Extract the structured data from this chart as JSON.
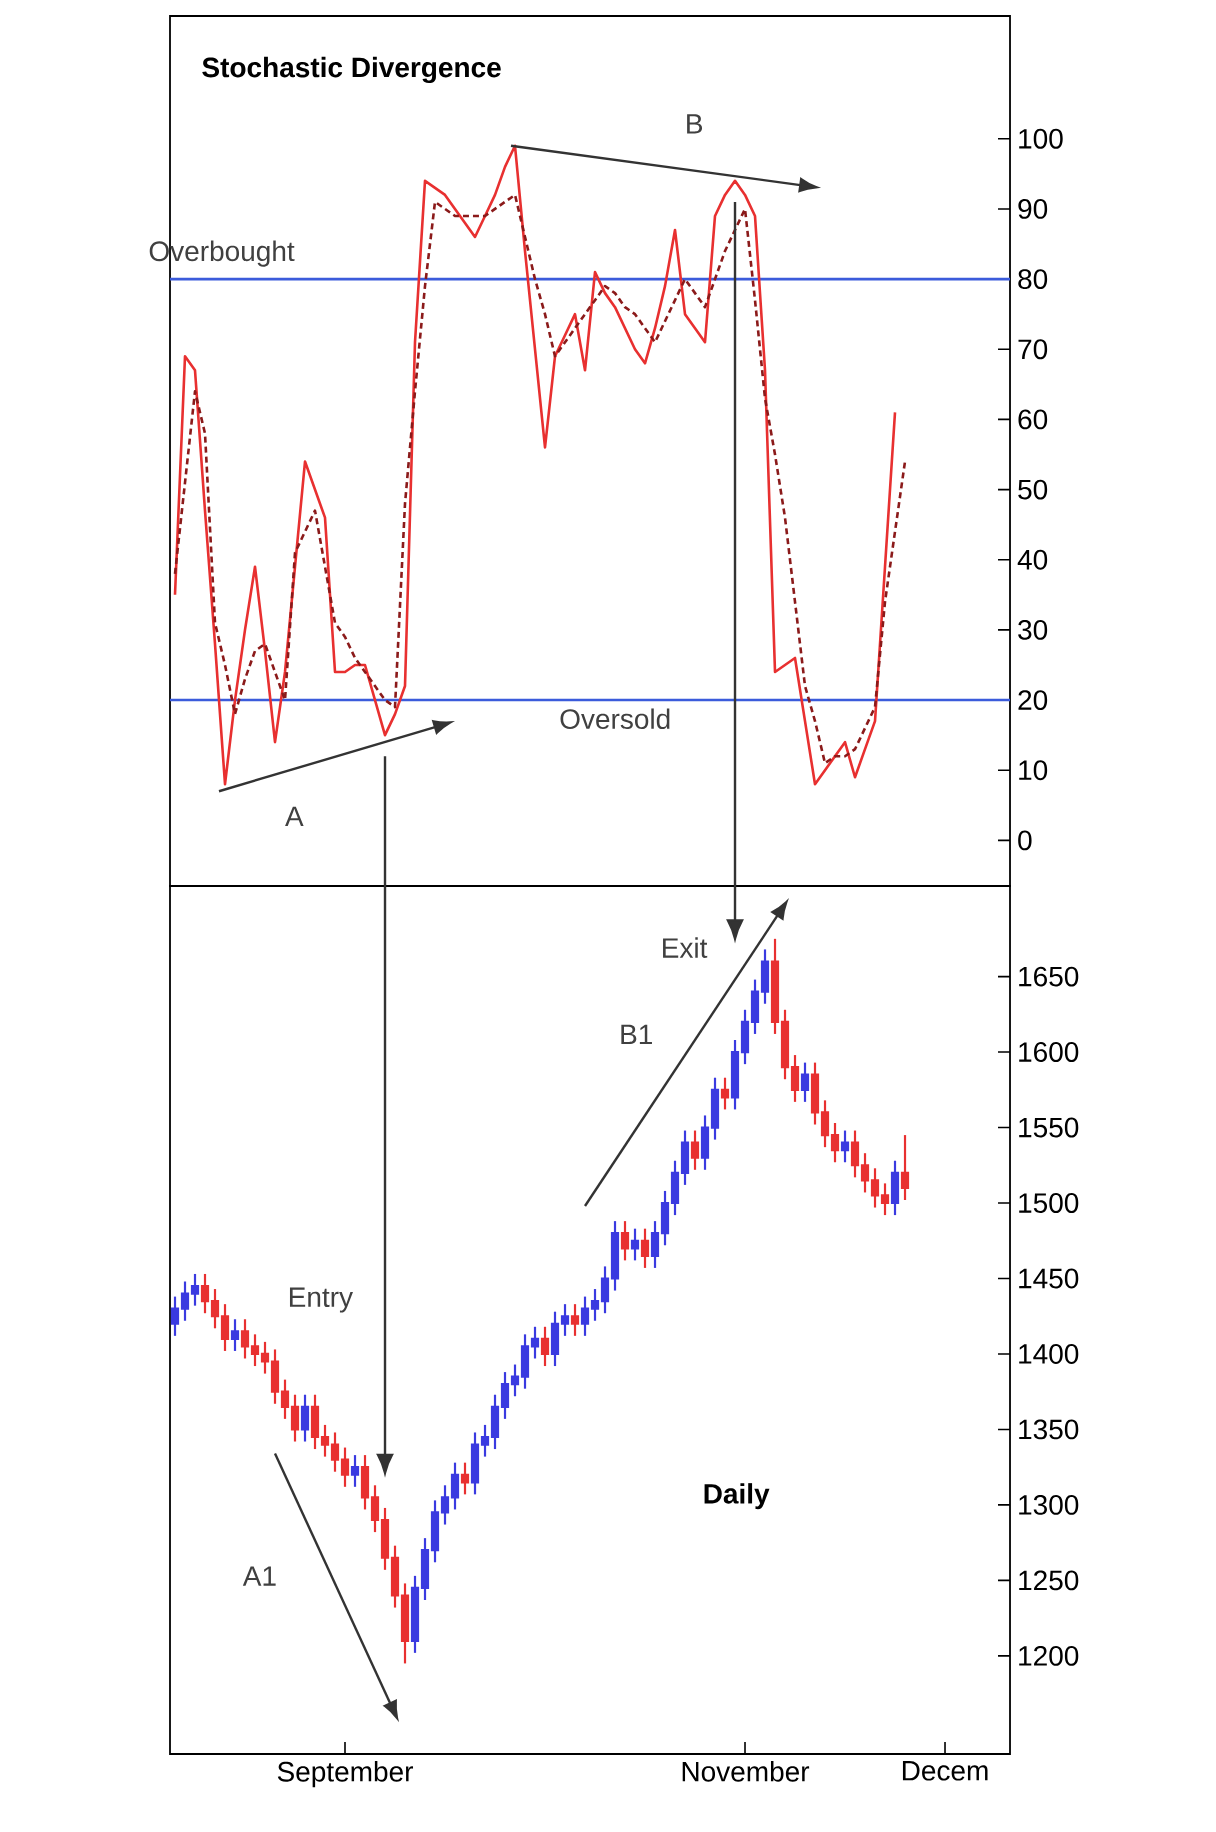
{
  "chart_data": [
    {
      "type": "line",
      "title": "Stochastic Divergence",
      "categories": [
        null,
        null,
        null,
        null,
        null,
        null,
        null,
        null,
        null,
        null,
        null,
        null,
        null,
        null,
        null,
        null,
        null,
        null,
        null,
        null,
        null,
        null,
        null,
        null,
        null,
        null,
        null,
        null,
        null,
        null,
        null,
        null,
        null,
        null,
        null,
        null,
        null,
        null,
        null,
        null,
        null,
        null,
        null,
        null,
        null,
        null,
        null,
        null,
        null,
        null,
        null,
        null,
        null,
        null,
        null,
        null,
        null,
        null,
        null,
        null,
        null,
        null,
        null,
        null,
        null,
        null,
        null,
        null,
        null,
        null,
        null,
        null,
        null,
        null,
        null,
        null,
        null,
        null,
        null,
        null,
        null,
        null,
        null,
        null
      ],
      "ylim": [
        -6.5,
        117.5
      ],
      "yticks": [
        0,
        10,
        20,
        30,
        40,
        50,
        60,
        70,
        80,
        90,
        100
      ],
      "tick_labels": "y",
      "ref_lines": [
        {
          "axis": "y",
          "value": 80,
          "label": "Overbought",
          "color": "#3b5bdb"
        },
        {
          "axis": "y",
          "value": 20,
          "label": "Oversold",
          "color": "#3b5bdb"
        }
      ],
      "annotations": [
        "A",
        "B"
      ],
      "series": [
        {
          "color": "#e83030",
          "line_style": "solid",
          "values": [
            35,
            69,
            67,
            47,
            28,
            8,
            20,
            30,
            39,
            27,
            14,
            24,
            39,
            54,
            50,
            46,
            24,
            24,
            25,
            25,
            20,
            15,
            18,
            22,
            71,
            94,
            93,
            92,
            90,
            88,
            86,
            89,
            92,
            96,
            99,
            84,
            70,
            56,
            69,
            72,
            75,
            67,
            81,
            78,
            76,
            73,
            70,
            68,
            73,
            79,
            87,
            75,
            73,
            71,
            89,
            92,
            94,
            92,
            89,
            67,
            24,
            25,
            26,
            17,
            8,
            10,
            12,
            14,
            9,
            13,
            17,
            39,
            61,
            null,
            null,
            null,
            null,
            null,
            null,
            null,
            null,
            null,
            null,
            null
          ]
        },
        {
          "color": "#8b1a1a",
          "line_style": "dashed",
          "values": [
            38,
            51,
            64,
            58,
            31,
            25,
            18,
            23,
            27,
            28,
            24,
            20,
            41,
            44,
            47,
            39,
            31,
            29,
            26,
            24,
            22,
            20,
            19,
            48,
            64,
            79,
            91,
            90,
            89,
            89,
            89,
            89,
            90,
            91,
            92,
            86,
            80,
            75,
            69,
            71,
            73,
            75,
            77,
            79,
            78,
            76,
            75,
            73,
            71,
            74,
            77,
            80,
            78,
            76,
            80,
            84,
            87,
            90,
            77,
            63,
            55,
            46,
            34,
            22,
            17,
            11,
            12,
            12,
            13,
            16,
            19,
            34,
            44,
            54,
            null,
            null,
            null,
            null,
            null,
            null,
            null,
            null,
            null,
            null
          ]
        }
      ]
    },
    {
      "type": "candlestick",
      "title": "Daily",
      "categories": [
        null,
        null,
        null,
        null,
        null,
        null,
        null,
        null,
        null,
        null,
        null,
        null,
        null,
        null,
        null,
        null,
        null,
        "September",
        null,
        null,
        null,
        null,
        null,
        null,
        null,
        null,
        null,
        null,
        null,
        null,
        null,
        null,
        null,
        null,
        null,
        null,
        null,
        null,
        null,
        null,
        null,
        null,
        null,
        null,
        null,
        null,
        null,
        null,
        null,
        null,
        null,
        null,
        null,
        null,
        null,
        null,
        null,
        "November",
        null,
        null,
        null,
        null,
        null,
        null,
        null,
        null,
        null,
        null,
        null,
        null,
        null,
        null,
        null,
        null,
        null,
        null,
        null,
        "Decem",
        null,
        null,
        null,
        null,
        null,
        null
      ],
      "ylim": [
        1135,
        1710
      ],
      "yticks": [
        1200,
        1250,
        1300,
        1350,
        1400,
        1450,
        1500,
        1550,
        1600,
        1650
      ],
      "annotations": [
        "Entry",
        "Exit",
        "A1",
        "B1"
      ],
      "ohlc": [
        [
          1420,
          1438,
          1412,
          1430
        ],
        [
          1430,
          1448,
          1422,
          1440
        ],
        [
          1440,
          1453,
          1432,
          1445
        ],
        [
          1445,
          1453,
          1427,
          1435
        ],
        [
          1435,
          1443,
          1417,
          1425
        ],
        [
          1425,
          1433,
          1402,
          1410
        ],
        [
          1410,
          1423,
          1402,
          1415
        ],
        [
          1415,
          1423,
          1397,
          1405
        ],
        [
          1405,
          1413,
          1392,
          1400
        ],
        [
          1400,
          1408,
          1387,
          1395
        ],
        [
          1395,
          1403,
          1367,
          1375
        ],
        [
          1375,
          1383,
          1357,
          1365
        ],
        [
          1365,
          1373,
          1342,
          1350
        ],
        [
          1350,
          1373,
          1342,
          1365
        ],
        [
          1365,
          1373,
          1337,
          1345
        ],
        [
          1345,
          1353,
          1332,
          1340
        ],
        [
          1340,
          1348,
          1322,
          1330
        ],
        [
          1330,
          1338,
          1312,
          1320
        ],
        [
          1320,
          1333,
          1312,
          1325
        ],
        [
          1325,
          1333,
          1297,
          1305
        ],
        [
          1305,
          1313,
          1282,
          1290
        ],
        [
          1290,
          1298,
          1257,
          1265
        ],
        [
          1265,
          1273,
          1232,
          1240
        ],
        [
          1240,
          1248,
          1195,
          1210
        ],
        [
          1210,
          1253,
          1202,
          1245
        ],
        [
          1245,
          1278,
          1237,
          1270
        ],
        [
          1270,
          1303,
          1262,
          1295
        ],
        [
          1295,
          1313,
          1287,
          1305
        ],
        [
          1305,
          1328,
          1297,
          1320
        ],
        [
          1320,
          1328,
          1307,
          1315
        ],
        [
          1315,
          1348,
          1307,
          1340
        ],
        [
          1340,
          1353,
          1332,
          1345
        ],
        [
          1345,
          1373,
          1337,
          1365
        ],
        [
          1365,
          1388,
          1357,
          1380
        ],
        [
          1380,
          1393,
          1372,
          1385
        ],
        [
          1385,
          1413,
          1377,
          1405
        ],
        [
          1405,
          1418,
          1397,
          1410
        ],
        [
          1410,
          1418,
          1392,
          1400
        ],
        [
          1400,
          1428,
          1392,
          1420
        ],
        [
          1420,
          1433,
          1412,
          1425
        ],
        [
          1425,
          1433,
          1412,
          1420
        ],
        [
          1420,
          1438,
          1412,
          1430
        ],
        [
          1430,
          1443,
          1422,
          1435
        ],
        [
          1435,
          1458,
          1427,
          1450
        ],
        [
          1450,
          1488,
          1442,
          1480
        ],
        [
          1480,
          1488,
          1462,
          1470
        ],
        [
          1470,
          1483,
          1462,
          1475
        ],
        [
          1475,
          1483,
          1457,
          1465
        ],
        [
          1465,
          1488,
          1457,
          1480
        ],
        [
          1480,
          1508,
          1472,
          1500
        ],
        [
          1500,
          1528,
          1492,
          1520
        ],
        [
          1520,
          1548,
          1512,
          1540
        ],
        [
          1540,
          1548,
          1522,
          1530
        ],
        [
          1530,
          1558,
          1522,
          1550
        ],
        [
          1550,
          1583,
          1542,
          1575
        ],
        [
          1575,
          1583,
          1562,
          1570
        ],
        [
          1570,
          1608,
          1562,
          1600
        ],
        [
          1600,
          1628,
          1592,
          1620
        ],
        [
          1620,
          1648,
          1612,
          1640
        ],
        [
          1640,
          1668,
          1632,
          1660
        ],
        [
          1660,
          1675,
          1612,
          1620
        ],
        [
          1620,
          1628,
          1582,
          1590
        ],
        [
          1590,
          1598,
          1567,
          1575
        ],
        [
          1575,
          1593,
          1567,
          1585
        ],
        [
          1585,
          1593,
          1552,
          1560
        ],
        [
          1560,
          1568,
          1537,
          1545
        ],
        [
          1545,
          1553,
          1527,
          1535
        ],
        [
          1535,
          1548,
          1527,
          1540
        ],
        [
          1540,
          1548,
          1517,
          1525
        ],
        [
          1525,
          1533,
          1507,
          1515
        ],
        [
          1515,
          1523,
          1497,
          1505
        ],
        [
          1505,
          1513,
          1492,
          1500
        ],
        [
          1500,
          1528,
          1492,
          1520
        ],
        [
          1520,
          1545,
          1502,
          1510
        ],
        null,
        null,
        null,
        null,
        null,
        null,
        null,
        null,
        null,
        null
      ],
      "colors": [
        "#3a3ae0",
        "#3a3ae0",
        "#3a3ae0",
        "#e83030",
        "#e83030",
        "#e83030",
        "#3a3ae0",
        "#e83030",
        "#e83030",
        "#e83030",
        "#e83030",
        "#e83030",
        "#e83030",
        "#3a3ae0",
        "#e83030",
        "#e83030",
        "#e83030",
        "#e83030",
        "#3a3ae0",
        "#e83030",
        "#e83030",
        "#e83030",
        "#e83030",
        "#e83030",
        "#3a3ae0",
        "#3a3ae0",
        "#3a3ae0",
        "#3a3ae0",
        "#3a3ae0",
        "#e83030",
        "#3a3ae0",
        "#3a3ae0",
        "#3a3ae0",
        "#3a3ae0",
        "#3a3ae0",
        "#3a3ae0",
        "#3a3ae0",
        "#e83030",
        "#3a3ae0",
        "#3a3ae0",
        "#e83030",
        "#3a3ae0",
        "#3a3ae0",
        "#3a3ae0",
        "#3a3ae0",
        "#e83030",
        "#3a3ae0",
        "#e83030",
        "#3a3ae0",
        "#3a3ae0",
        "#3a3ae0",
        "#3a3ae0",
        "#e83030",
        "#3a3ae0",
        "#3a3ae0",
        "#e83030",
        "#3a3ae0",
        "#3a3ae0",
        "#3a3ae0",
        "#3a3ae0",
        "#e83030",
        "#e83030",
        "#e83030",
        "#3a3ae0",
        "#e83030",
        "#e83030",
        "#e83030",
        "#3a3ae0",
        "#e83030",
        "#e83030",
        "#e83030",
        "#e83030",
        "#3a3ae0",
        "#e83030",
        null,
        null,
        null,
        null,
        null,
        null,
        null,
        null,
        null,
        null
      ]
    }
  ]
}
